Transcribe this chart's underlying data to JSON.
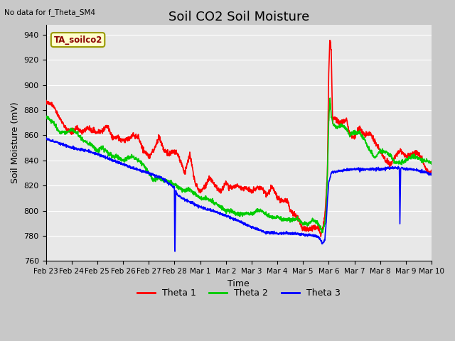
{
  "title": "Soil CO2 Soil Moisture",
  "subtitle": "No data for f_Theta_SM4",
  "ylabel": "Soil Moisture (mV)",
  "xlabel": "Time",
  "ylim": [
    760,
    948
  ],
  "yticks": [
    760,
    780,
    800,
    820,
    840,
    860,
    880,
    900,
    920,
    940
  ],
  "fig_bg": "#c8c8c8",
  "plot_bg": "#e8e8e8",
  "grid_color": "#ffffff",
  "title_fontsize": 13,
  "axis_label_fontsize": 9,
  "tick_fontsize": 8,
  "legend_label": "TA_soilco2",
  "legend_box_facecolor": "#ffffcc",
  "legend_box_edgecolor": "#999900",
  "line_colors": {
    "theta1": "#ff0000",
    "theta2": "#00cc00",
    "theta3": "#0000ff"
  },
  "line_width": 1.2,
  "figsize": [
    6.4,
    4.8
  ],
  "dpi": 100,
  "theta1_keypoints": [
    [
      0.0,
      887
    ],
    [
      0.3,
      883
    ],
    [
      0.5,
      875
    ],
    [
      0.8,
      865
    ],
    [
      1.0,
      862
    ],
    [
      1.2,
      866
    ],
    [
      1.4,
      862
    ],
    [
      1.6,
      866
    ],
    [
      1.8,
      864
    ],
    [
      2.0,
      862
    ],
    [
      2.2,
      864
    ],
    [
      2.4,
      867
    ],
    [
      2.6,
      858
    ],
    [
      2.8,
      858
    ],
    [
      3.0,
      856
    ],
    [
      3.2,
      857
    ],
    [
      3.4,
      860
    ],
    [
      3.6,
      858
    ],
    [
      3.8,
      848
    ],
    [
      4.0,
      843
    ],
    [
      4.2,
      848
    ],
    [
      4.4,
      859
    ],
    [
      4.6,
      848
    ],
    [
      4.8,
      845
    ],
    [
      5.0,
      848
    ],
    [
      5.2,
      842
    ],
    [
      5.4,
      830
    ],
    [
      5.6,
      845
    ],
    [
      5.8,
      822
    ],
    [
      6.0,
      815
    ],
    [
      6.2,
      820
    ],
    [
      6.4,
      826
    ],
    [
      6.6,
      820
    ],
    [
      6.8,
      815
    ],
    [
      7.0,
      822
    ],
    [
      7.2,
      818
    ],
    [
      7.4,
      820
    ],
    [
      7.6,
      818
    ],
    [
      7.8,
      818
    ],
    [
      8.0,
      815
    ],
    [
      8.2,
      818
    ],
    [
      8.4,
      818
    ],
    [
      8.6,
      812
    ],
    [
      8.8,
      820
    ],
    [
      9.0,
      810
    ],
    [
      9.2,
      808
    ],
    [
      9.4,
      808
    ],
    [
      9.5,
      800
    ],
    [
      9.6,
      798
    ],
    [
      9.7,
      797
    ],
    [
      9.8,
      795
    ],
    [
      10.0,
      785
    ],
    [
      10.2,
      785
    ],
    [
      10.4,
      787
    ],
    [
      10.6,
      786
    ],
    [
      10.65,
      783
    ],
    [
      10.7,
      780
    ],
    [
      10.75,
      785
    ],
    [
      10.8,
      790
    ],
    [
      10.85,
      795
    ],
    [
      10.9,
      812
    ],
    [
      10.95,
      828
    ],
    [
      11.0,
      910
    ],
    [
      11.05,
      938
    ],
    [
      11.1,
      926
    ],
    [
      11.15,
      870
    ],
    [
      11.2,
      875
    ],
    [
      11.3,
      872
    ],
    [
      11.5,
      870
    ],
    [
      11.7,
      873
    ],
    [
      11.8,
      862
    ],
    [
      12.0,
      858
    ],
    [
      12.2,
      866
    ],
    [
      12.4,
      860
    ],
    [
      12.6,
      862
    ],
    [
      12.8,
      855
    ],
    [
      13.0,
      848
    ],
    [
      13.2,
      840
    ],
    [
      13.4,
      837
    ],
    [
      13.6,
      844
    ],
    [
      13.8,
      848
    ],
    [
      14.0,
      843
    ],
    [
      14.2,
      845
    ],
    [
      14.4,
      847
    ],
    [
      14.6,
      843
    ],
    [
      14.8,
      832
    ],
    [
      15.0,
      830
    ]
  ],
  "theta2_keypoints": [
    [
      0.0,
      875
    ],
    [
      0.3,
      870
    ],
    [
      0.5,
      863
    ],
    [
      0.8,
      862
    ],
    [
      1.0,
      864
    ],
    [
      1.2,
      862
    ],
    [
      1.4,
      857
    ],
    [
      1.6,
      854
    ],
    [
      1.8,
      852
    ],
    [
      2.0,
      848
    ],
    [
      2.2,
      850
    ],
    [
      2.4,
      846
    ],
    [
      2.6,
      843
    ],
    [
      2.8,
      843
    ],
    [
      3.0,
      840
    ],
    [
      3.2,
      842
    ],
    [
      3.4,
      843
    ],
    [
      3.6,
      840
    ],
    [
      3.8,
      836
    ],
    [
      4.0,
      830
    ],
    [
      4.2,
      824
    ],
    [
      4.4,
      826
    ],
    [
      4.6,
      824
    ],
    [
      4.8,
      823
    ],
    [
      5.0,
      821
    ],
    [
      5.2,
      818
    ],
    [
      5.4,
      816
    ],
    [
      5.6,
      817
    ],
    [
      5.8,
      813
    ],
    [
      6.0,
      810
    ],
    [
      6.2,
      810
    ],
    [
      6.4,
      808
    ],
    [
      6.6,
      806
    ],
    [
      6.8,
      803
    ],
    [
      7.0,
      800
    ],
    [
      7.2,
      800
    ],
    [
      7.4,
      797
    ],
    [
      7.6,
      797
    ],
    [
      7.8,
      798
    ],
    [
      8.0,
      797
    ],
    [
      8.2,
      800
    ],
    [
      8.4,
      800
    ],
    [
      8.6,
      796
    ],
    [
      8.8,
      795
    ],
    [
      9.0,
      795
    ],
    [
      9.2,
      793
    ],
    [
      9.4,
      793
    ],
    [
      9.6,
      793
    ],
    [
      9.8,
      793
    ],
    [
      10.0,
      790
    ],
    [
      10.2,
      790
    ],
    [
      10.4,
      793
    ],
    [
      10.6,
      790
    ],
    [
      10.65,
      787
    ],
    [
      10.7,
      785
    ],
    [
      10.75,
      783
    ],
    [
      10.8,
      786
    ],
    [
      10.85,
      790
    ],
    [
      10.9,
      800
    ],
    [
      10.95,
      830
    ],
    [
      11.0,
      870
    ],
    [
      11.05,
      890
    ],
    [
      11.1,
      875
    ],
    [
      11.15,
      870
    ],
    [
      11.2,
      868
    ],
    [
      11.3,
      866
    ],
    [
      11.5,
      868
    ],
    [
      11.7,
      865
    ],
    [
      11.8,
      860
    ],
    [
      12.0,
      862
    ],
    [
      12.2,
      862
    ],
    [
      12.4,
      856
    ],
    [
      12.6,
      848
    ],
    [
      12.8,
      842
    ],
    [
      13.0,
      847
    ],
    [
      13.2,
      847
    ],
    [
      13.4,
      844
    ],
    [
      13.6,
      838
    ],
    [
      13.8,
      838
    ],
    [
      14.0,
      840
    ],
    [
      14.2,
      843
    ],
    [
      14.4,
      843
    ],
    [
      14.6,
      840
    ],
    [
      14.8,
      840
    ],
    [
      15.0,
      838
    ]
  ],
  "theta3_keypoints": [
    [
      0.0,
      857
    ],
    [
      0.5,
      854
    ],
    [
      1.0,
      850
    ],
    [
      1.5,
      848
    ],
    [
      2.0,
      845
    ],
    [
      2.5,
      841
    ],
    [
      3.0,
      837
    ],
    [
      3.5,
      833
    ],
    [
      4.0,
      830
    ],
    [
      4.5,
      826
    ],
    [
      4.9,
      820
    ],
    [
      5.0,
      818
    ],
    [
      5.01,
      770
    ],
    [
      5.02,
      768
    ],
    [
      5.05,
      816
    ],
    [
      5.1,
      813
    ],
    [
      5.3,
      810
    ],
    [
      5.5,
      808
    ],
    [
      5.7,
      806
    ],
    [
      6.0,
      803
    ],
    [
      6.5,
      800
    ],
    [
      7.0,
      796
    ],
    [
      7.5,
      792
    ],
    [
      8.0,
      787
    ],
    [
      8.5,
      783
    ],
    [
      9.0,
      782
    ],
    [
      9.5,
      782
    ],
    [
      10.0,
      781
    ],
    [
      10.5,
      780
    ],
    [
      10.6,
      779
    ],
    [
      10.65,
      778
    ],
    [
      10.7,
      776
    ],
    [
      10.75,
      774
    ],
    [
      10.8,
      775
    ],
    [
      10.85,
      777
    ],
    [
      10.9,
      790
    ],
    [
      10.95,
      808
    ],
    [
      11.0,
      822
    ],
    [
      11.1,
      830
    ],
    [
      11.2,
      831
    ],
    [
      11.5,
      832
    ],
    [
      12.0,
      833
    ],
    [
      12.5,
      833
    ],
    [
      13.0,
      833
    ],
    [
      13.5,
      834
    ],
    [
      13.75,
      834
    ],
    [
      13.76,
      800
    ],
    [
      13.77,
      790
    ],
    [
      13.8,
      834
    ],
    [
      14.0,
      833
    ],
    [
      14.5,
      832
    ],
    [
      15.0,
      829
    ]
  ]
}
